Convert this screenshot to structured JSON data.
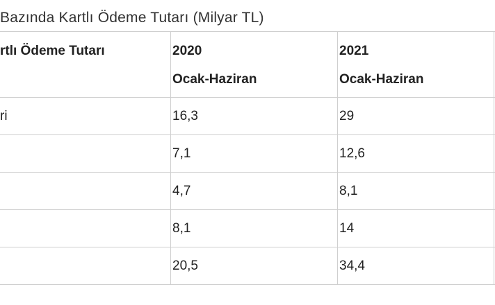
{
  "title": "Bazında Kartlı Ödeme Tutarı (Milyar TL)",
  "table": {
    "header": {
      "label": "rtlı Ödeme Tutarı",
      "columns": [
        {
          "year": "2020",
          "period": "Ocak-Haziran"
        },
        {
          "year": "2021",
          "period": "Ocak-Haziran"
        }
      ]
    },
    "rows": [
      {
        "label": "ri",
        "values": [
          "16,3",
          "29"
        ]
      },
      {
        "values": [
          "7,1",
          "12,6"
        ]
      },
      {
        "values": [
          "4,7",
          "8,1"
        ]
      },
      {
        "values": [
          "8,1",
          "14"
        ]
      },
      {
        "values": [
          "20,5",
          "34,4"
        ]
      }
    ]
  }
}
